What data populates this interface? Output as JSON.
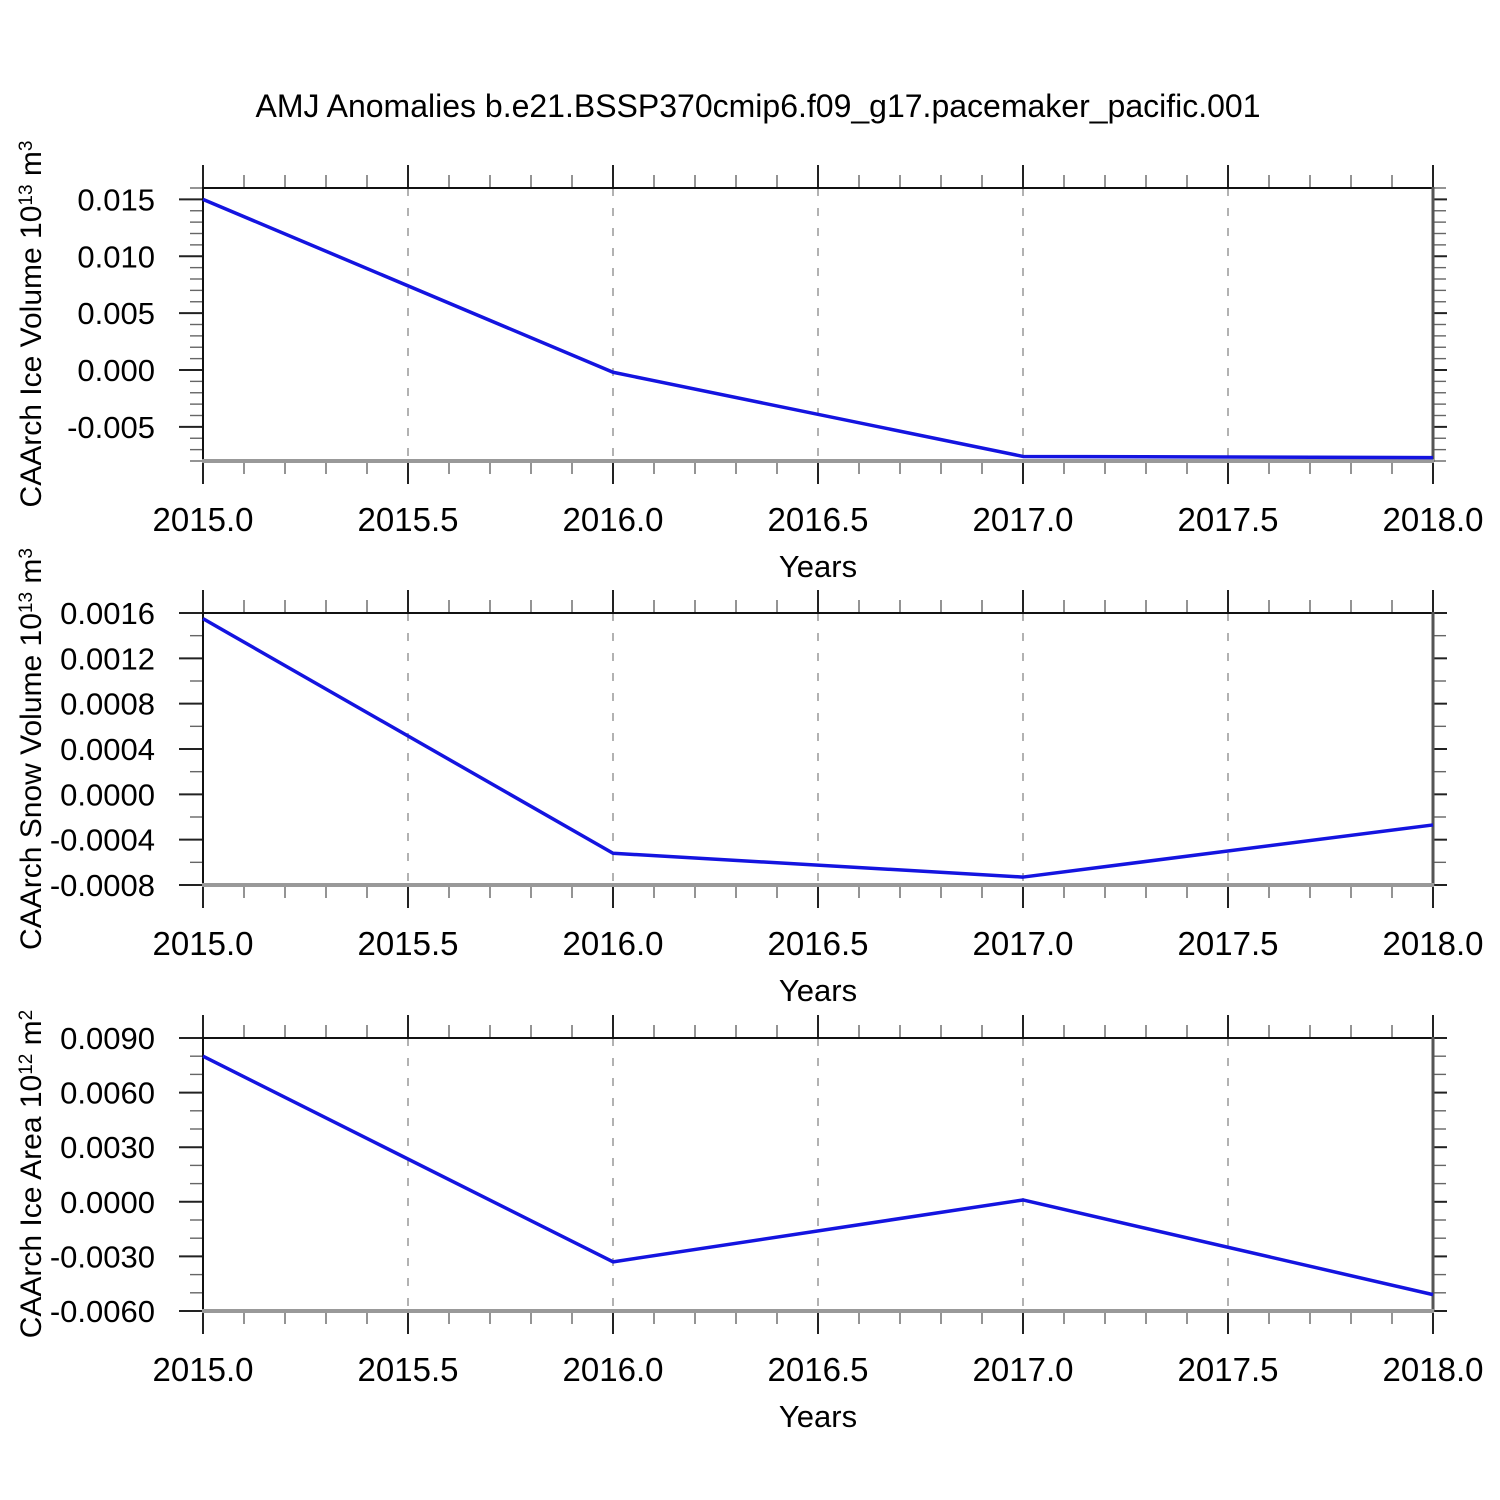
{
  "title": "AMJ Anomalies b.e21.BSSP370cmip6.f09_g17.pacemaker_pacific.001",
  "colors": {
    "line": "#1414e0",
    "grid": "#999999",
    "axis": "#111111",
    "border_bottom": "#999999",
    "border_right": "#555555",
    "tick_major": "#222222",
    "tick_minor": "#666666"
  },
  "chart_data": [
    {
      "type": "line",
      "id": "ice-volume",
      "series_name": "CAArch Ice Volume",
      "x": [
        2015.0,
        2016.0,
        2017.0,
        2018.0
      ],
      "values": [
        0.015,
        -0.0002,
        -0.0076,
        -0.0077
      ],
      "xlabel": "Years",
      "ylabel": {
        "base": "CAArch Ice Volume 10",
        "base_exp": "13",
        "unit": " m",
        "unit_exp": "3"
      },
      "xlim": [
        2015.0,
        2018.0
      ],
      "ylim": [
        -0.008,
        0.016
      ],
      "x_tick_values": [
        2015.0,
        2015.5,
        2016.0,
        2016.5,
        2017.0,
        2017.5,
        2018.0
      ],
      "x_tick_labels": [
        "2015.0",
        "2015.5",
        "2016.0",
        "2016.5",
        "2017.0",
        "2017.5",
        "2018.0"
      ],
      "x_minor_step": 0.1,
      "y_tick_values": [
        0.015,
        0.01,
        0.005,
        0.0,
        -0.005
      ],
      "y_tick_labels": [
        "0.015",
        "0.010",
        "0.005",
        "0.000",
        "-0.005"
      ],
      "y_minor_step": 0.001,
      "grid_x": [
        2015.5,
        2016.0,
        2016.5,
        2017.0,
        2017.5
      ],
      "grid": true,
      "legend": "none"
    },
    {
      "type": "line",
      "id": "snow-volume",
      "series_name": "CAArch Snow Volume",
      "x": [
        2015.0,
        2016.0,
        2017.0,
        2018.0
      ],
      "values": [
        0.00155,
        -0.00052,
        -0.00073,
        -0.00027
      ],
      "xlabel": "Years",
      "ylabel": {
        "base": "CAArch Snow Volume 10",
        "base_exp": "13",
        "unit": " m",
        "unit_exp": "3"
      },
      "xlim": [
        2015.0,
        2018.0
      ],
      "ylim": [
        -0.0008,
        0.0016
      ],
      "x_tick_values": [
        2015.0,
        2015.5,
        2016.0,
        2016.5,
        2017.0,
        2017.5,
        2018.0
      ],
      "x_tick_labels": [
        "2015.0",
        "2015.5",
        "2016.0",
        "2016.5",
        "2017.0",
        "2017.5",
        "2018.0"
      ],
      "x_minor_step": 0.1,
      "y_tick_values": [
        0.0016,
        0.0012,
        0.0008,
        0.0004,
        0.0,
        -0.0004,
        -0.0008
      ],
      "y_tick_labels": [
        "0.0016",
        "0.0012",
        "0.0008",
        "0.0004",
        "0.0000",
        "-0.0004",
        "-0.0008"
      ],
      "y_minor_step": 0.0002,
      "grid_x": [
        2015.5,
        2016.0,
        2016.5,
        2017.0,
        2017.5
      ],
      "grid": true,
      "legend": "none"
    },
    {
      "type": "line",
      "id": "ice-area",
      "series_name": "CAArch Ice Area",
      "x": [
        2015.0,
        2016.0,
        2017.0,
        2018.0
      ],
      "values": [
        0.008,
        -0.0033,
        0.0001,
        -0.0051
      ],
      "xlabel": "Years",
      "ylabel": {
        "base": "CAArch Ice Area 10",
        "base_exp": "12",
        "unit": " m",
        "unit_exp": "2"
      },
      "xlim": [
        2015.0,
        2018.0
      ],
      "ylim": [
        -0.006,
        0.009
      ],
      "x_tick_values": [
        2015.0,
        2015.5,
        2016.0,
        2016.5,
        2017.0,
        2017.5,
        2018.0
      ],
      "x_tick_labels": [
        "2015.0",
        "2015.5",
        "2016.0",
        "2016.5",
        "2017.0",
        "2017.5",
        "2018.0"
      ],
      "x_minor_step": 0.1,
      "y_tick_values": [
        0.009,
        0.006,
        0.003,
        0.0,
        -0.003,
        -0.006
      ],
      "y_tick_labels": [
        "0.0090",
        "0.0060",
        "0.0030",
        "0.0000",
        "-0.0030",
        "-0.0060"
      ],
      "y_minor_step": 0.001,
      "grid_x": [
        2015.5,
        2016.0,
        2016.5,
        2017.0,
        2017.5
      ],
      "grid": true,
      "legend": "none"
    }
  ]
}
